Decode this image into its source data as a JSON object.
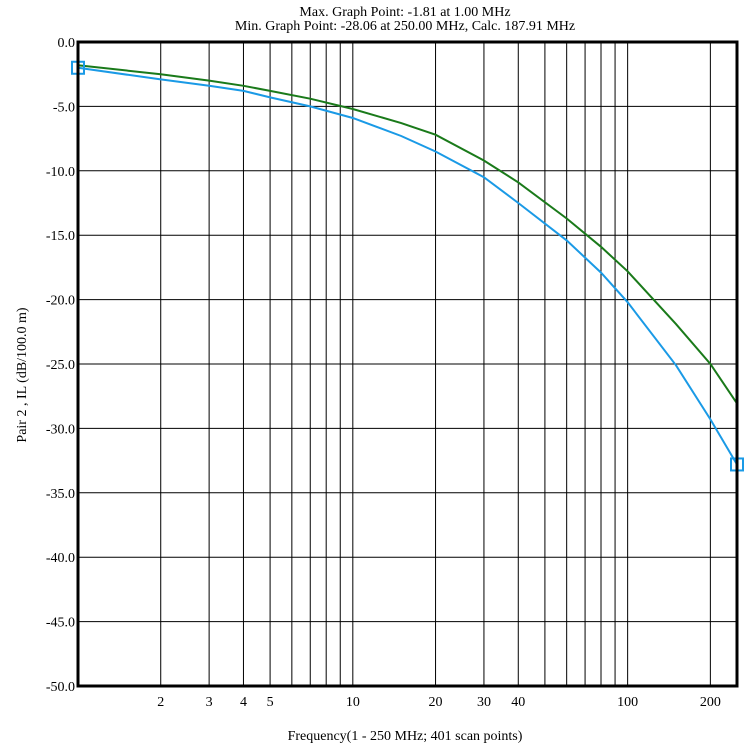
{
  "header": {
    "max_point": "Max. Graph Point: -1.81 at 1.00 MHz",
    "min_point": "Min. Graph Point: -28.06 at 250.00 MHz, Calc. 187.91 MHz"
  },
  "chart_data": {
    "type": "line",
    "title": "",
    "xlabel": "Frequency(1 - 250 MHz; 401 scan points)",
    "ylabel": "Pair 2 , IL (dB/100.0 m)",
    "x_scale": "log",
    "xlim": [
      1,
      250
    ],
    "ylim": [
      -50,
      0
    ],
    "x_ticks": [
      2,
      3,
      4,
      5,
      10,
      20,
      30,
      40,
      100,
      200
    ],
    "y_ticks": [
      0,
      -5,
      -10,
      -15,
      -20,
      -25,
      -30,
      -35,
      -40,
      -45,
      -50
    ],
    "y_tick_labels": [
      "0.0",
      "-5.0",
      "-10.0",
      "-15.0",
      "-20.0",
      "-25.0",
      "-30.0",
      "-35.0",
      "-40.0",
      "-45.0",
      "-50.0"
    ],
    "grid": true,
    "series": [
      {
        "color": "#1a7a1a",
        "x": [
          1,
          2,
          3,
          4,
          5,
          7,
          10,
          15,
          20,
          30,
          40,
          60,
          80,
          100,
          150,
          200,
          250
        ],
        "y": [
          -1.81,
          -2.5,
          -3.0,
          -3.4,
          -3.8,
          -4.4,
          -5.2,
          -6.3,
          -7.2,
          -9.2,
          -10.9,
          -13.7,
          -15.9,
          -17.8,
          -21.9,
          -25.0,
          -28.06
        ]
      },
      {
        "color": "#1a9ae6",
        "x": [
          1,
          2,
          3,
          4,
          5,
          7,
          10,
          15,
          20,
          30,
          40,
          60,
          80,
          100,
          150,
          200,
          250
        ],
        "y": [
          -2.0,
          -2.9,
          -3.4,
          -3.8,
          -4.3,
          -5.0,
          -5.9,
          -7.3,
          -8.5,
          -10.5,
          -12.5,
          -15.4,
          -17.9,
          -20.2,
          -25.1,
          -29.3,
          -32.8
        ],
        "markers": [
          0,
          16
        ]
      }
    ]
  }
}
